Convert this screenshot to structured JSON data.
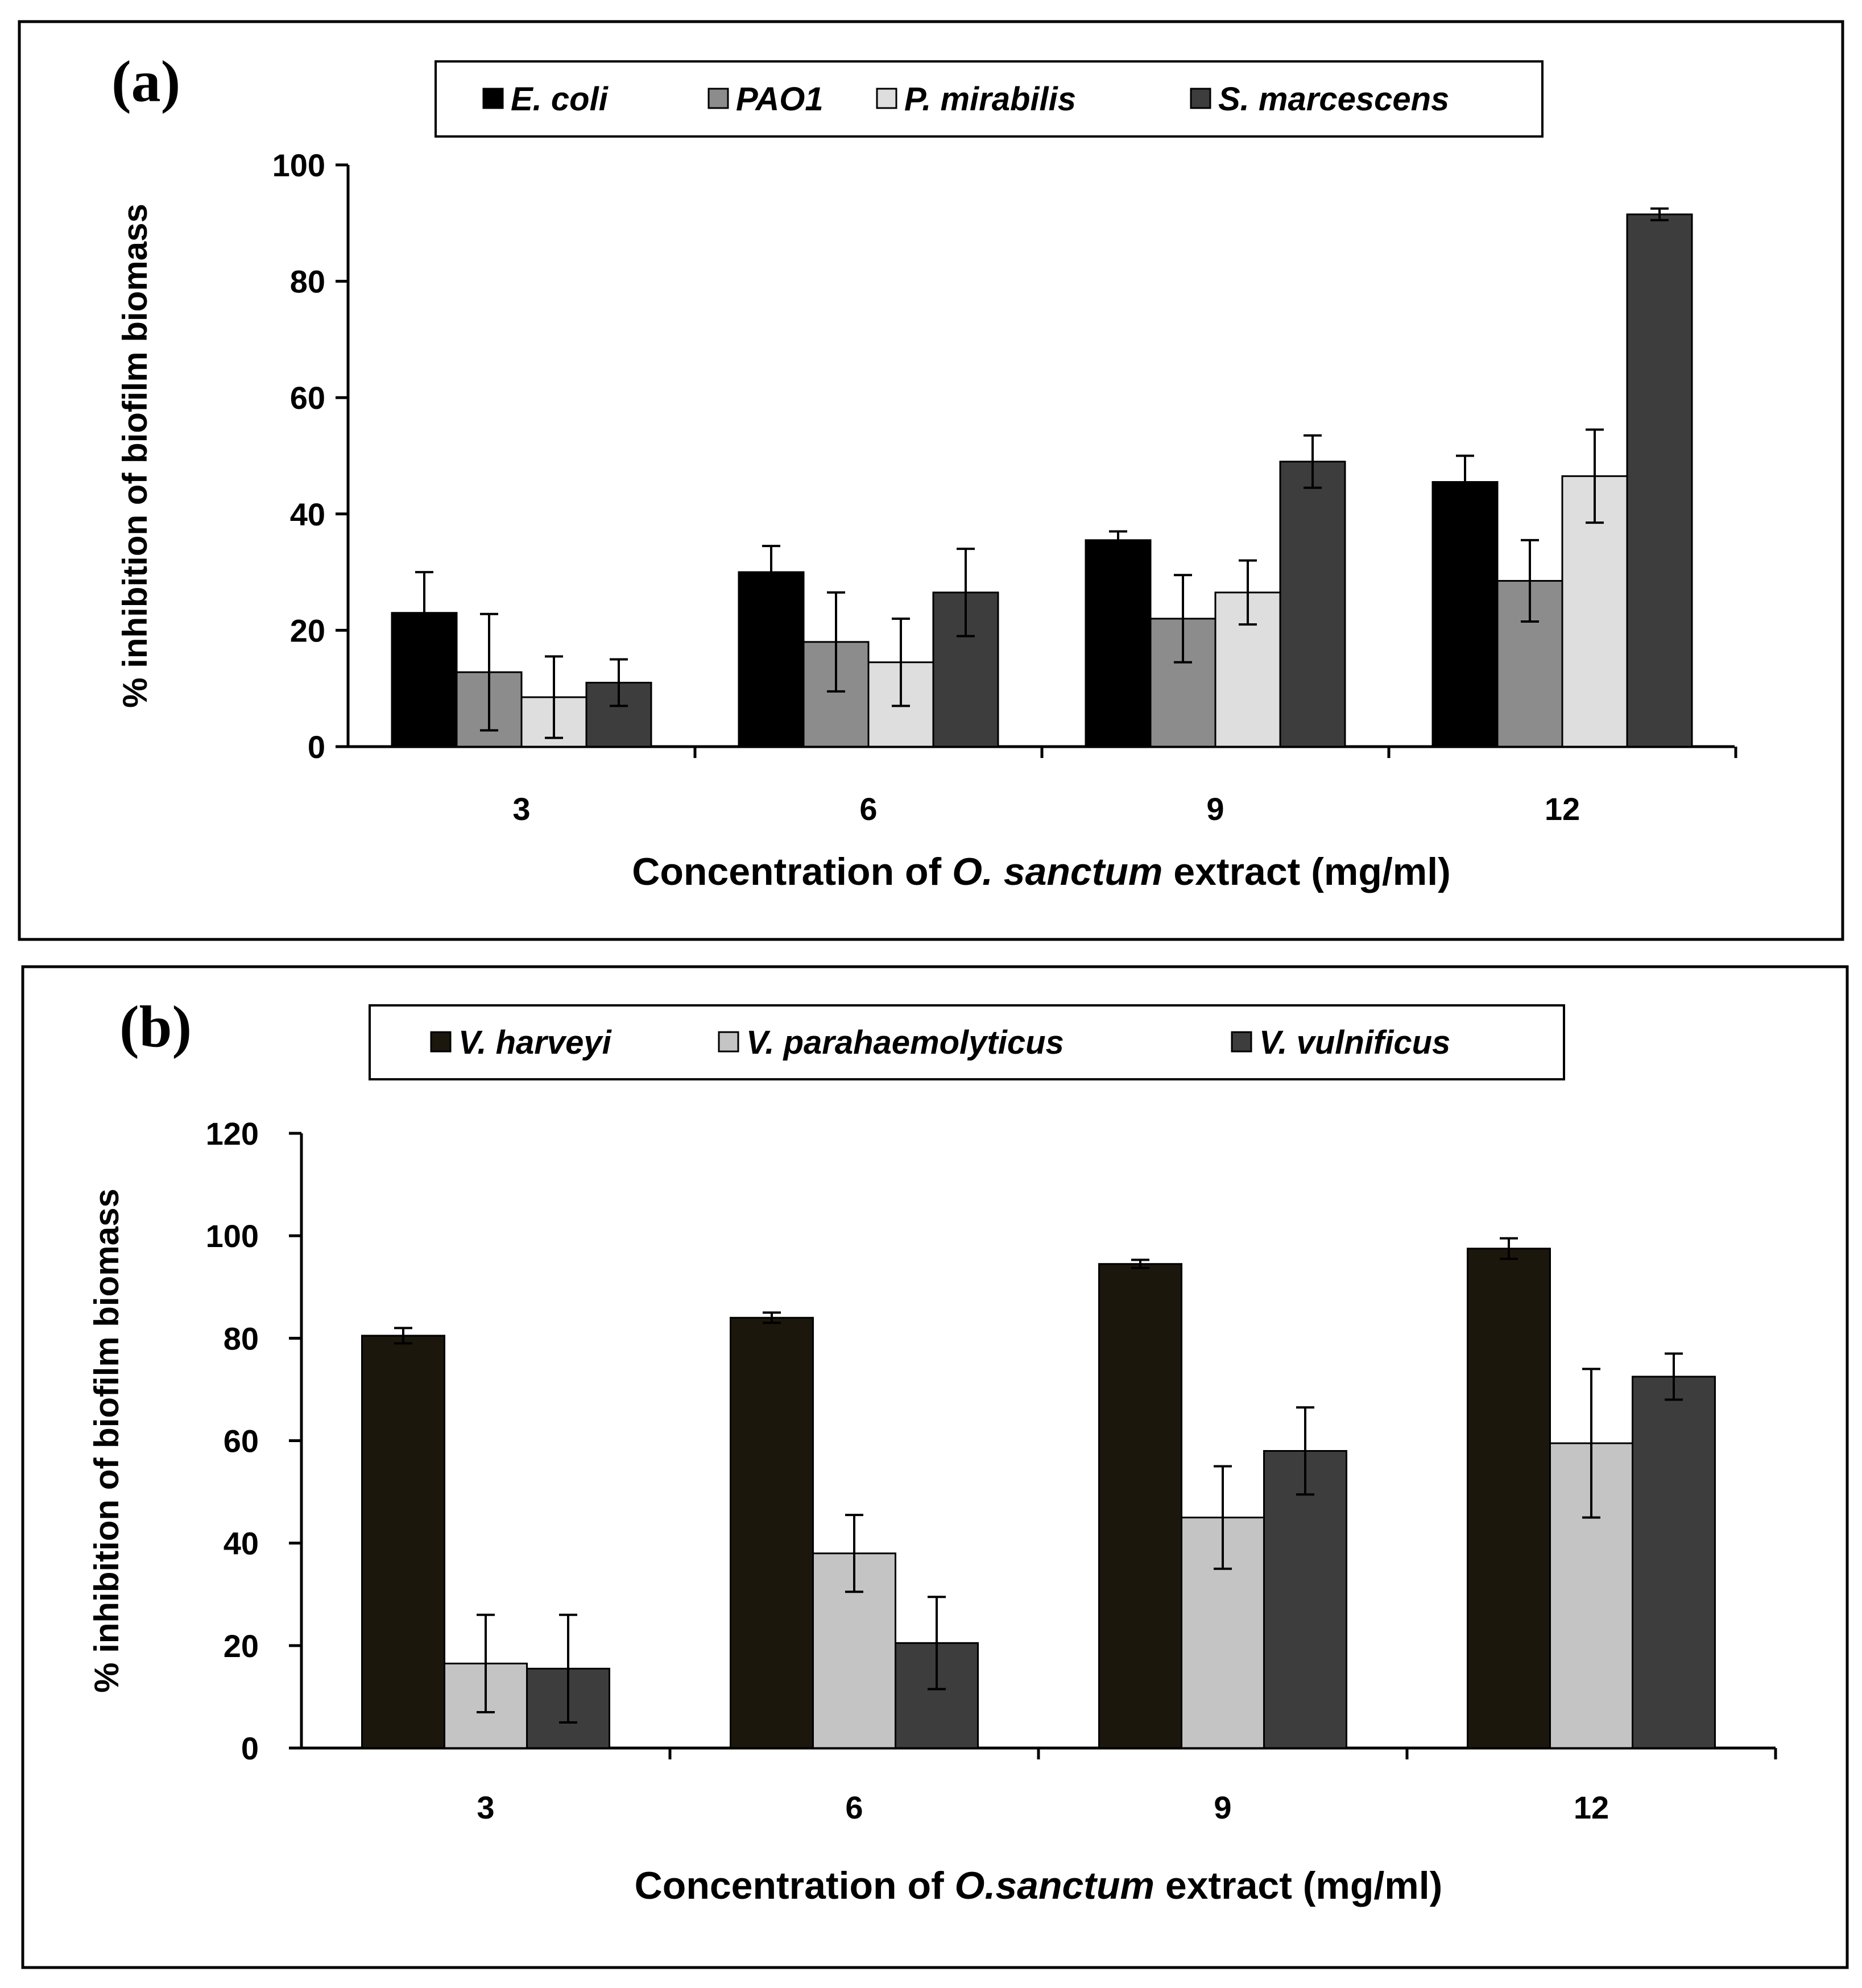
{
  "chart_data": [
    {
      "type": "bar",
      "panel_label": "(a)",
      "categories": [
        "3",
        "6",
        "9",
        "12"
      ],
      "xlabel_parts": [
        {
          "text": "Concentration of ",
          "italic": false
        },
        {
          "text": "O. sanctum",
          "italic": true
        },
        {
          "text": " extract (mg/ml)",
          "italic": false
        }
      ],
      "ylabel": "% inhibition of biofilm biomass",
      "ylim": [
        0,
        100
      ],
      "yticks": [
        "0",
        "20",
        "40",
        "60",
        "80",
        "100"
      ],
      "legend_position": "top-center",
      "grid": false,
      "series": [
        {
          "name": "E. coli",
          "color": "#000000",
          "values": [
            23,
            30,
            35.5,
            45.5
          ],
          "errors": [
            7,
            4.5,
            1.5,
            4.5
          ]
        },
        {
          "name": "PAO1",
          "color": "#8c8c8c",
          "values": [
            12.8,
            18,
            22,
            28.5
          ],
          "errors": [
            10,
            8.5,
            7.5,
            7
          ]
        },
        {
          "name": "P. mirabilis",
          "color": "#dedede",
          "values": [
            8.5,
            14.5,
            26.5,
            46.5
          ],
          "errors": [
            7,
            7.5,
            5.5,
            8
          ]
        },
        {
          "name": "S. marcescens",
          "color": "#3d3d3d",
          "values": [
            11,
            26.5,
            49,
            91.5
          ],
          "errors": [
            4,
            7.5,
            4.5,
            1
          ]
        }
      ]
    },
    {
      "type": "bar",
      "panel_label": "(b)",
      "categories": [
        "3",
        "6",
        "9",
        "12"
      ],
      "xlabel_parts": [
        {
          "text": "Concentration of ",
          "italic": false
        },
        {
          "text": "O.sanctum",
          "italic": true
        },
        {
          "text": " extract (mg/ml)",
          "italic": false
        }
      ],
      "ylabel": "% inhibition of biofilm biomass",
      "ylim": [
        0,
        120
      ],
      "yticks": [
        "0",
        "20",
        "40",
        "60",
        "80",
        "100",
        "120"
      ],
      "legend_position": "top-center",
      "grid": false,
      "series": [
        {
          "name": "V. harveyi",
          "color": "#1c170c",
          "values": [
            80.5,
            84,
            94.5,
            97.5
          ],
          "errors": [
            1.5,
            1,
            0.8,
            2
          ]
        },
        {
          "name": "V. parahaemolyticus",
          "color": "#c4c4c4",
          "values": [
            16.5,
            38,
            45,
            59.5
          ],
          "errors": [
            9.5,
            7.5,
            10,
            14.5
          ]
        },
        {
          "name": "V. vulnificus",
          "color": "#3d3d3d",
          "values": [
            15.5,
            20.5,
            58,
            72.5
          ],
          "errors": [
            10.5,
            9,
            8.5,
            4.5
          ]
        }
      ]
    }
  ]
}
